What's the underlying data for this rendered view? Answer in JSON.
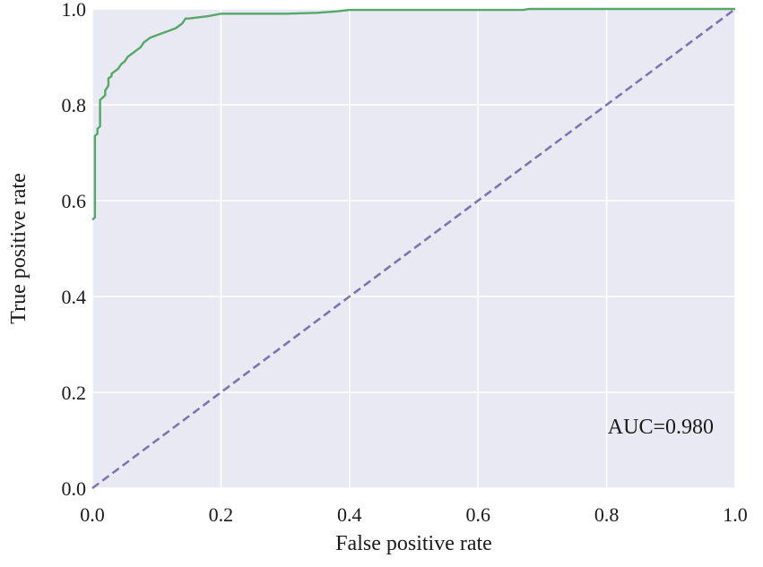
{
  "chart_data": {
    "type": "line",
    "title": "",
    "xlabel": "False positive rate",
    "ylabel": "True positive rate",
    "xlim": [
      0.0,
      1.0
    ],
    "ylim": [
      0.0,
      1.0
    ],
    "xticks": [
      "0.0",
      "0.2",
      "0.4",
      "0.6",
      "0.8",
      "1.0"
    ],
    "yticks": [
      "0.0",
      "0.2",
      "0.4",
      "0.6",
      "0.8",
      "1.0"
    ],
    "grid": true,
    "annotation": "AUC=0.980",
    "colors": {
      "plot_background": "#e9e9f3",
      "grid": "#ffffff",
      "roc_curve": "#55a868",
      "diagonal": "#8172b2"
    },
    "series": [
      {
        "style": "solid",
        "x": [
          0.0,
          0.004,
          0.004,
          0.008,
          0.008,
          0.012,
          0.012,
          0.016,
          0.02,
          0.02,
          0.025,
          0.025,
          0.03,
          0.03,
          0.035,
          0.04,
          0.045,
          0.05,
          0.055,
          0.06,
          0.065,
          0.07,
          0.075,
          0.08,
          0.09,
          0.1,
          0.11,
          0.12,
          0.13,
          0.135,
          0.14,
          0.145,
          0.15,
          0.18,
          0.2,
          0.21,
          0.3,
          0.35,
          0.38,
          0.4,
          0.5,
          0.67,
          0.68,
          1.0
        ],
        "y": [
          0.56,
          0.565,
          0.735,
          0.74,
          0.75,
          0.755,
          0.81,
          0.815,
          0.82,
          0.83,
          0.84,
          0.855,
          0.86,
          0.865,
          0.87,
          0.875,
          0.885,
          0.89,
          0.9,
          0.905,
          0.91,
          0.915,
          0.92,
          0.93,
          0.94,
          0.945,
          0.95,
          0.955,
          0.96,
          0.965,
          0.97,
          0.98,
          0.98,
          0.985,
          0.99,
          0.99,
          0.99,
          0.992,
          0.995,
          0.998,
          0.998,
          0.998,
          1.0,
          1.0
        ]
      },
      {
        "style": "dashed",
        "x": [
          0.0,
          1.0
        ],
        "y": [
          0.0,
          1.0
        ]
      }
    ]
  }
}
